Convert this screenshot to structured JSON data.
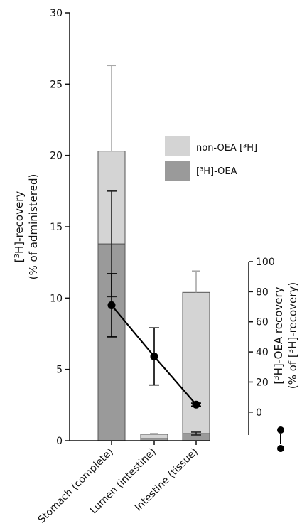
{
  "chart_data": {
    "type": "bar",
    "stacked": true,
    "categories": [
      "Stomach (complete)",
      "Lumen (intestine)",
      "Intestine (tissue)"
    ],
    "series": [
      {
        "name": "[³H]-OEA",
        "values": [
          13.8,
          0.15,
          0.5
        ],
        "error": [
          3.7,
          0,
          0.1
        ]
      },
      {
        "name": "non-OEA [³H]",
        "values": [
          6.5,
          0.3,
          9.9
        ],
        "error": [
          6.0,
          0.05,
          1.5
        ]
      }
    ],
    "line_series": {
      "name": "[³H]-OEA recovery",
      "axis": "right",
      "values": [
        71,
        37,
        5
      ],
      "error": [
        21,
        19,
        1
      ]
    },
    "y_left": {
      "label_line1_pre": "[",
      "label_line1_sup": "3",
      "label_line1_post": "H]-recovery",
      "label_line2": "(% of administered)",
      "ylim": [
        0,
        30
      ],
      "ticks": [
        0,
        5,
        10,
        15,
        20,
        25,
        30
      ]
    },
    "y_right": {
      "label_line1_pre": "[",
      "label_line1_sup": "3",
      "label_line1_post": "H]-OEA recovery",
      "label_line2_pre": "(% of [",
      "label_line2_sup": "3",
      "label_line2_post": "H]-recovery)",
      "ylim": [
        -15.2,
        100
      ],
      "ticks": [
        0,
        20,
        40,
        60,
        80,
        100
      ]
    },
    "legend": {
      "placement": "top-right"
    },
    "grid": false,
    "colors": {
      "oea": "#9a9a9a",
      "non_oea": "#d4d4d4",
      "bar_stroke": "#555555",
      "axis": "#111111",
      "line": "#000000",
      "err_upper": "#a8a8a8"
    }
  }
}
